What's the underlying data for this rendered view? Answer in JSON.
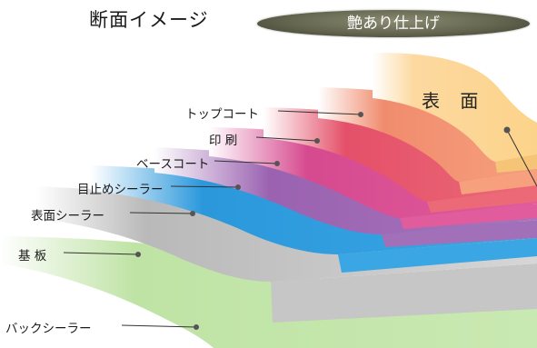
{
  "header": {
    "title": "断面イメージ",
    "badge": "艶あり仕上げ"
  },
  "surface_label": "表 面",
  "layers": [
    {
      "label": "トップコート",
      "color": "#f08c6e"
    },
    {
      "label": "印 刷",
      "color": "#e45069"
    },
    {
      "label": "ベースコート",
      "color": "#d64a8f"
    },
    {
      "label": "目止めシーラー",
      "color": "#9a62b0"
    },
    {
      "label": "表面シーラー",
      "color": "#2b98dc"
    },
    {
      "label": "基 板",
      "color": "#b4b4b4"
    },
    {
      "label": "バックシーラー",
      "color": "#bfe3a5"
    }
  ],
  "colors": {
    "badge": "#64654f",
    "surface": "#fcd38a"
  }
}
